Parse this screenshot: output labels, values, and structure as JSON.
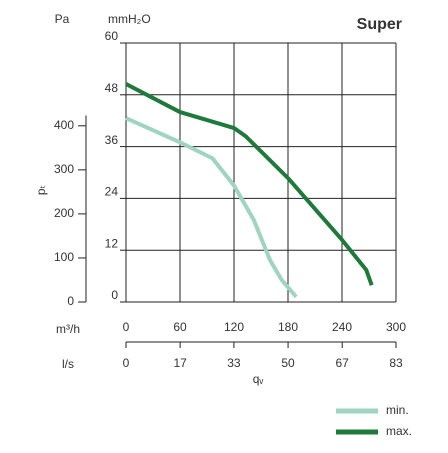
{
  "chart_data": {
    "type": "line",
    "title": "Super",
    "y_unit": "mmH₂O",
    "y2_unit": "Pa",
    "y_label": "pₜ",
    "x_label": "qᵥ",
    "x_unit": "m³/h",
    "x2_unit": "l/s",
    "xlim": [
      0,
      300
    ],
    "xticks": [
      0,
      60,
      120,
      180,
      240,
      300
    ],
    "x2lim": [
      0,
      83.3
    ],
    "x2ticks": [
      0,
      {
        "value": 16.7,
        "label": "17"
      },
      {
        "value": 33.3,
        "label": "33"
      },
      50,
      {
        "value": 66.7,
        "label": "67"
      },
      {
        "value": 83.3,
        "label": "83"
      }
    ],
    "ylim": [
      0,
      60
    ],
    "yticks": [
      0,
      12,
      24,
      36,
      48,
      60
    ],
    "y2lim": [
      0,
      588
    ],
    "y2ticks": [
      0,
      100,
      200,
      300,
      400
    ],
    "grid": true,
    "series": [
      {
        "name": "min.",
        "color": "#9fd4c0",
        "x": [
          0,
          60,
          96,
          120,
          142,
          160,
          173,
          189
        ],
        "values": [
          42.6,
          37,
          33.3,
          27,
          19,
          9.7,
          5.1,
          1.2
        ]
      },
      {
        "name": "max.",
        "color": "#1e7a3a",
        "x": [
          0,
          60,
          120,
          133,
          180,
          240,
          267,
          273
        ],
        "values": [
          50.5,
          44,
          40.3,
          38.4,
          28.7,
          14.4,
          7.4,
          3.9
        ]
      }
    ]
  }
}
